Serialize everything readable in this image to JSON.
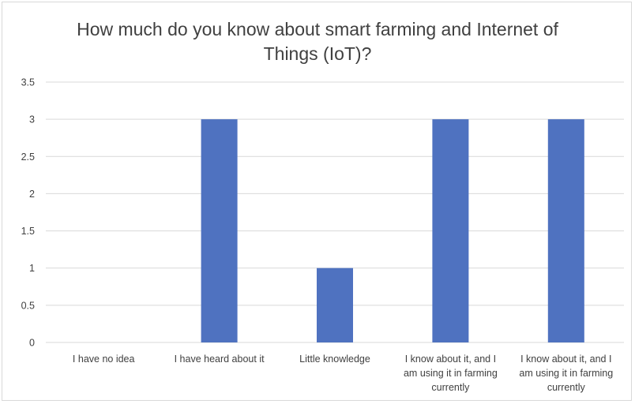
{
  "chart_data": {
    "type": "bar",
    "title": "How much do you know about smart farming and Internet of Things (IoT)?",
    "categories": [
      [
        "I have no idea"
      ],
      [
        "I have heard about it"
      ],
      [
        "Little knowledge"
      ],
      [
        "I know about it, and I",
        "am using it in farming",
        "currently"
      ],
      [
        "I know about it, and I",
        "am using it in farming",
        "currently"
      ]
    ],
    "values": [
      0,
      3,
      1,
      3,
      3
    ],
    "ylim": [
      0,
      3.5
    ],
    "yticks": [
      "0",
      "0.5",
      "1",
      "1.5",
      "2",
      "2.5",
      "3",
      "3.5"
    ],
    "grid": true,
    "legend": "none",
    "bar_color": "#4f72c0",
    "grid_color": "#d9d9d9"
  }
}
